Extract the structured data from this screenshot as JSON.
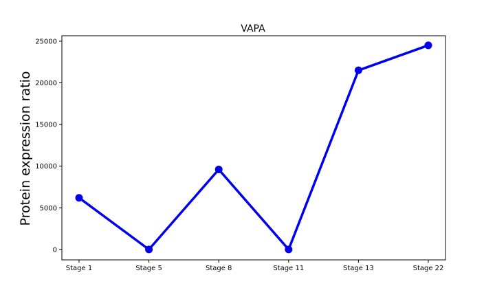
{
  "chart_data": {
    "type": "line",
    "title": "VAPA",
    "xlabel": "",
    "ylabel": "Protein expression ratio",
    "categories": [
      "Stage 1",
      "Stage 5",
      "Stage 8",
      "Stage 11",
      "Stage 13",
      "Stage 22"
    ],
    "series": [
      {
        "values": [
          6200,
          0,
          9600,
          0,
          21500,
          24500
        ],
        "color": "#0000ee"
      }
    ],
    "ylim": [
      -1250,
      25650
    ],
    "yticks": [
      0,
      5000,
      10000,
      15000,
      20000,
      25000
    ],
    "ytick_labels": [
      "0",
      "5000",
      "10000",
      "15000",
      "20000",
      "25000"
    ],
    "grid": false,
    "legend": "none"
  }
}
